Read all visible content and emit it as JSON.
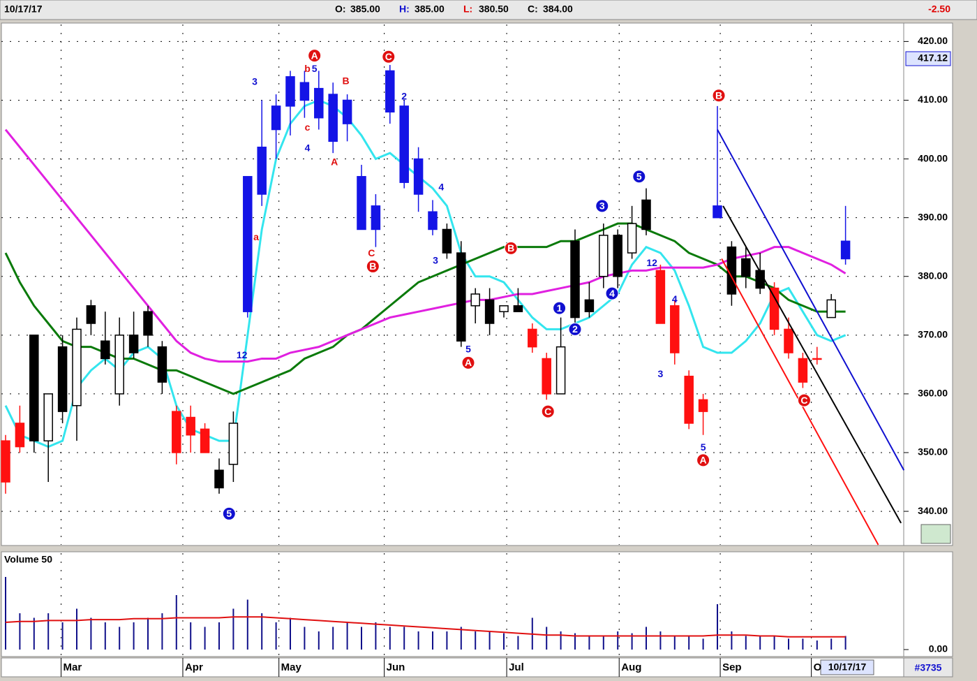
{
  "chart_data": {
    "type": "candlestick",
    "header": {
      "date": "10/17/17",
      "fields": [
        {
          "label": "O:",
          "value": "385.00",
          "color": "#000000"
        },
        {
          "label": "H:",
          "value": "385.00",
          "color": "#1010d0"
        },
        {
          "label": "L:",
          "value": "380.50",
          "color": "#e00000"
        },
        {
          "label": "C:",
          "value": "384.00",
          "color": "#000000"
        }
      ],
      "change": "-2.50"
    },
    "price_flag": "417.12",
    "volume_title": "Volume 50",
    "cursor_date": "10/17/17",
    "symbol_id": "#3735",
    "ylim": [
      334.3,
      422.9
    ],
    "yticks": [
      {
        "value": 340,
        "label": "340.00"
      },
      {
        "value": 350,
        "label": "350.00"
      },
      {
        "value": 360,
        "label": "360.00"
      },
      {
        "value": 370,
        "label": "370.00"
      },
      {
        "value": 380,
        "label": "380.00"
      },
      {
        "value": 390,
        "label": "390.00"
      },
      {
        "value": 400,
        "label": "400.00"
      },
      {
        "value": 410,
        "label": "410.00"
      },
      {
        "value": 420,
        "label": "420.00"
      }
    ],
    "xticks": [
      {
        "value": 3.9,
        "label": "Mar"
      },
      {
        "value": 12.45,
        "label": "Apr"
      },
      {
        "value": 19.2,
        "label": "May"
      },
      {
        "value": 26.6,
        "label": "Jun"
      },
      {
        "value": 35.2,
        "label": "Jul"
      },
      {
        "value": 43.1,
        "label": "Aug"
      },
      {
        "value": 50.2,
        "label": "Sep"
      },
      {
        "value": 56.6,
        "label": "O"
      }
    ],
    "grid": true,
    "candle_colors": {
      "blue": "#1414e6",
      "red": "#ff1010",
      "black": "#000000",
      "white": "#ffffff"
    },
    "candles": {
      "open": [
        352,
        355,
        370,
        352,
        368,
        358,
        375,
        369,
        360,
        370,
        374,
        368,
        357,
        356,
        354,
        347,
        348,
        374,
        402,
        405,
        409,
        413,
        412,
        411,
        410,
        397,
        392,
        408,
        409,
        400,
        391,
        388,
        384,
        375,
        376,
        374,
        375,
        371,
        366,
        360,
        386,
        376,
        380,
        387,
        384,
        393,
        381,
        375,
        363,
        359,
        392,
        385,
        383,
        381,
        378,
        371,
        366,
        366,
        373,
        383
      ],
      "high": [
        353,
        358,
        370,
        360,
        370,
        373,
        376,
        374,
        373,
        374,
        375,
        369,
        358,
        358,
        355,
        349,
        357,
        397,
        410,
        411,
        415,
        415,
        415,
        413,
        411,
        399,
        394,
        416,
        410,
        402,
        393,
        389,
        386,
        378,
        378,
        375,
        378,
        372,
        367,
        373,
        388,
        379,
        389,
        388,
        392,
        395,
        382,
        376,
        364,
        360,
        409,
        386,
        385,
        384,
        379,
        373,
        367,
        368,
        377,
        392
      ],
      "low": [
        343,
        350,
        350,
        345,
        355,
        352,
        370,
        365,
        358,
        366,
        368,
        360,
        348,
        350,
        350,
        343,
        345,
        373,
        392,
        400,
        404,
        407,
        405,
        401,
        403,
        388,
        385,
        406,
        395,
        391,
        387,
        383,
        368,
        372,
        370,
        373,
        374,
        367,
        359,
        360,
        372,
        373,
        378,
        378,
        383,
        387,
        372,
        365,
        354,
        353,
        390,
        375,
        378,
        377,
        370,
        366,
        361,
        365,
        373,
        382
      ],
      "close": [
        345,
        351,
        352,
        360,
        357,
        371,
        372,
        366,
        370,
        367,
        370,
        362,
        350,
        353,
        350,
        344,
        355,
        397,
        394,
        409,
        414,
        410,
        407,
        403,
        406,
        388,
        388,
        415,
        396,
        394,
        388,
        384,
        369,
        377,
        372,
        375,
        374,
        368,
        360,
        368,
        373,
        374,
        387,
        380,
        389,
        388,
        372,
        367,
        355,
        357,
        390,
        377,
        380,
        378,
        371,
        367,
        362,
        366,
        376,
        386
      ],
      "colors": [
        "red",
        "red",
        "black",
        "white",
        "black",
        "white",
        "black",
        "black",
        "white",
        "black",
        "black",
        "black",
        "red",
        "red",
        "red",
        "black",
        "white",
        "blue",
        "blue",
        "blue",
        "blue",
        "blue",
        "blue",
        "blue",
        "blue",
        "blue",
        "blue",
        "blue",
        "blue",
        "blue",
        "blue",
        "black",
        "black",
        "white",
        "black",
        "white",
        "black",
        "red",
        "red",
        "white",
        "black",
        "black",
        "white",
        "black",
        "white",
        "black",
        "red",
        "red",
        "red",
        "red",
        "blue",
        "black",
        "black",
        "black",
        "red",
        "red",
        "red",
        "red",
        "white",
        "blue"
      ]
    },
    "series": [
      {
        "name": "cyan",
        "color": "#33e5ee",
        "values": [
          358,
          353,
          352,
          351,
          352,
          361,
          364,
          366,
          364,
          367,
          368,
          366,
          358,
          354,
          353,
          352,
          352,
          370,
          388,
          400,
          406,
          409,
          410,
          409,
          407,
          404,
          400,
          401,
          399,
          397,
          395,
          392,
          384,
          380,
          380,
          379,
          376,
          373,
          371,
          371,
          372,
          373,
          375,
          377,
          382,
          385,
          384,
          381,
          375,
          368,
          367,
          367,
          369,
          372,
          377,
          378,
          374,
          370,
          369,
          370
        ]
      },
      {
        "name": "green",
        "color": "#0a7a0a",
        "values": [
          384,
          379,
          375,
          372,
          369,
          368,
          368,
          367,
          366,
          366,
          365,
          364,
          364,
          363,
          362,
          361,
          360,
          361,
          362,
          363,
          364,
          366,
          367,
          368,
          370,
          371,
          373,
          375,
          377,
          379,
          380,
          381,
          382,
          383,
          384,
          385,
          385,
          385,
          385,
          386,
          386,
          387,
          388,
          389,
          389,
          388,
          387,
          386,
          384,
          383,
          382,
          380,
          380,
          379,
          378,
          376,
          375,
          374,
          374,
          374
        ]
      },
      {
        "name": "magenta",
        "color": "#e020e0",
        "values": [
          405,
          402,
          399,
          396,
          393,
          390,
          387,
          384,
          381,
          378,
          375,
          372,
          369,
          367,
          366,
          365.5,
          365.5,
          365.5,
          366,
          366,
          367,
          367.5,
          368,
          369,
          370,
          371,
          372,
          373,
          373.5,
          374,
          374.5,
          375,
          375.5,
          376,
          376,
          376.5,
          377,
          377,
          377.5,
          378,
          378.5,
          379,
          380,
          380.5,
          381,
          381,
          381.5,
          381.5,
          381.5,
          381.5,
          382,
          383,
          383.5,
          384,
          385,
          385,
          384,
          383,
          382,
          380.5
        ]
      }
    ],
    "trendlines": [
      {
        "color": "#1010d0",
        "from": [
          50,
          405
        ],
        "to": [
          63.1,
          347
        ]
      },
      {
        "color": "#000000",
        "from": [
          50.4,
          392
        ],
        "to": [
          62.9,
          338
        ]
      },
      {
        "color": "#ff1010",
        "from": [
          50.3,
          383
        ],
        "to": [
          61.3,
          334.3
        ]
      }
    ],
    "annotations": [
      {
        "text": "A",
        "index": 21.7,
        "price": 417.6,
        "color": "#e01010",
        "circle": true
      },
      {
        "text": "C",
        "index": 26.9,
        "price": 417.4,
        "color": "#e01010",
        "circle": true
      },
      {
        "text": "B",
        "index": 25.8,
        "price": 381.7,
        "color": "#e01010",
        "circle": true
      },
      {
        "text": "B",
        "index": 35.5,
        "price": 384.8,
        "color": "#e01010",
        "circle": true
      },
      {
        "text": "A",
        "index": 32.5,
        "price": 365.3,
        "color": "#e01010",
        "circle": true
      },
      {
        "text": "C",
        "index": 38.1,
        "price": 357,
        "color": "#e01010",
        "circle": true
      },
      {
        "text": "B",
        "index": 50.1,
        "price": 410.8,
        "color": "#e01010",
        "circle": true
      },
      {
        "text": "A",
        "index": 49,
        "price": 348.7,
        "color": "#e01010",
        "circle": true
      },
      {
        "text": "C",
        "index": 56.1,
        "price": 358.9,
        "color": "#e01010",
        "circle": true
      },
      {
        "text": "5",
        "index": 15.7,
        "price": 339.6,
        "color": "#1010d0",
        "circle": true
      },
      {
        "text": "1",
        "index": 38.9,
        "price": 374.6,
        "color": "#1010d0",
        "circle": true
      },
      {
        "text": "2",
        "index": 40,
        "price": 371,
        "color": "#1010d0",
        "circle": true
      },
      {
        "text": "3",
        "index": 41.9,
        "price": 392,
        "color": "#1010d0",
        "circle": true
      },
      {
        "text": "4",
        "index": 42.6,
        "price": 377.1,
        "color": "#1010d0",
        "circle": true
      },
      {
        "text": "5",
        "index": 44.5,
        "price": 397,
        "color": "#1010d0",
        "circle": true
      },
      {
        "text": "3",
        "index": 17.5,
        "price": 413.2,
        "color": "#1010d0",
        "circle": false
      },
      {
        "text": "5",
        "index": 21.7,
        "price": 415.4,
        "color": "#1010d0",
        "circle": false
      },
      {
        "text": "4",
        "index": 21.2,
        "price": 401.9,
        "color": "#1010d0",
        "circle": false
      },
      {
        "text": "2",
        "index": 28,
        "price": 410.7,
        "color": "#1010d0",
        "circle": false
      },
      {
        "text": "4",
        "index": 30.6,
        "price": 395.2,
        "color": "#1010d0",
        "circle": false
      },
      {
        "text": "3",
        "index": 30.2,
        "price": 382.7,
        "color": "#1010d0",
        "circle": false
      },
      {
        "text": "5",
        "index": 32.5,
        "price": 367.6,
        "color": "#1010d0",
        "circle": false
      },
      {
        "text": "12",
        "index": 16.6,
        "price": 366.6,
        "color": "#1010d0",
        "circle": false
      },
      {
        "text": "12",
        "index": 45.4,
        "price": 382.3,
        "color": "#1010d0",
        "circle": false
      },
      {
        "text": "4",
        "index": 47,
        "price": 376.1,
        "color": "#1010d0",
        "circle": false
      },
      {
        "text": "3",
        "index": 46,
        "price": 363.4,
        "color": "#1010d0",
        "circle": false
      },
      {
        "text": "5",
        "index": 49,
        "price": 350.9,
        "color": "#1010d0",
        "circle": false
      },
      {
        "text": "b",
        "index": 21.2,
        "price": 415.4,
        "color": "#e01010",
        "circle": false
      },
      {
        "text": "c",
        "index": 21.2,
        "price": 405.4,
        "color": "#e01010",
        "circle": false
      },
      {
        "text": "B",
        "index": 23.9,
        "price": 413.3,
        "color": "#e01010",
        "circle": false
      },
      {
        "text": "A",
        "index": 23.1,
        "price": 399.5,
        "color": "#e01010",
        "circle": false
      },
      {
        "text": "C",
        "index": 25.7,
        "price": 384,
        "color": "#e01010",
        "circle": false
      },
      {
        "text": "a",
        "index": 17.6,
        "price": 386.7,
        "color": "#e01010",
        "circle": false
      }
    ],
    "volume": {
      "ylim": [
        0,
        100
      ],
      "yticks": [
        {
          "value": 0,
          "label": "0.00"
        }
      ],
      "color": "#10108a",
      "ma_color": "#e01010",
      "values": [
        80,
        40,
        35,
        40,
        30,
        45,
        35,
        30,
        25,
        30,
        35,
        40,
        60,
        30,
        25,
        30,
        45,
        55,
        40,
        30,
        35,
        25,
        20,
        25,
        30,
        25,
        30,
        25,
        25,
        20,
        20,
        20,
        25,
        20,
        20,
        18,
        15,
        35,
        25,
        20,
        18,
        15,
        15,
        20,
        18,
        25,
        20,
        15,
        15,
        12,
        50,
        20,
        15,
        15,
        15,
        12,
        12,
        10,
        12,
        15
      ],
      "ma": [
        30,
        31,
        31,
        32,
        32,
        32,
        33,
        33,
        33,
        34,
        34,
        34,
        35,
        35,
        35,
        35,
        36,
        36,
        36,
        35,
        34,
        33,
        32,
        31,
        30,
        29,
        28,
        27,
        26,
        25,
        24,
        23,
        22,
        21,
        20,
        19,
        18,
        17,
        16,
        16,
        15,
        15,
        15,
        15,
        15,
        15,
        15,
        15,
        15,
        15,
        16,
        16,
        16,
        15,
        15,
        14,
        14,
        14,
        14,
        14
      ]
    }
  }
}
